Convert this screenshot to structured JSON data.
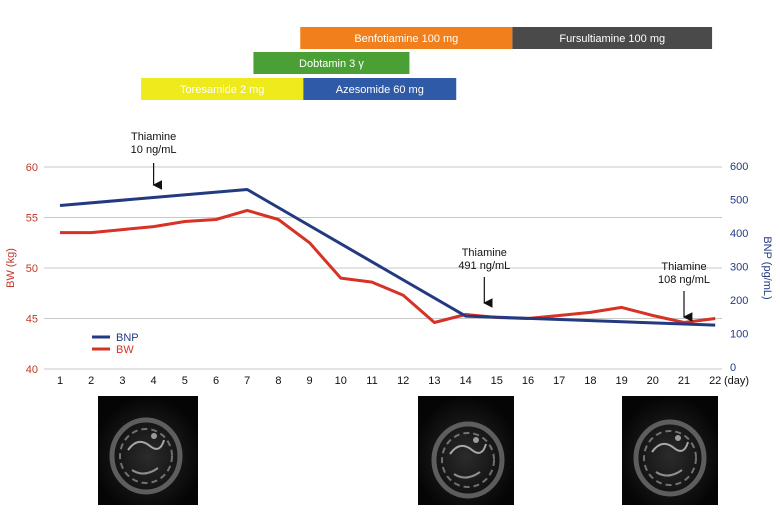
{
  "chart_data": {
    "type": "line",
    "title": "",
    "xlabel": "(day)",
    "ylabel_left": "BW (kg)",
    "ylabel_right": "BNP (pg/mL)",
    "x_ticks": [
      "1",
      "2",
      "3",
      "4",
      "5",
      "6",
      "7",
      "8",
      "9",
      "10",
      "11",
      "12",
      "13",
      "14",
      "15",
      "16",
      "17",
      "18",
      "19",
      "20",
      "21",
      "22"
    ],
    "ylim_left": [
      40,
      60
    ],
    "yticks_left": [
      "40",
      "45",
      "50",
      "55",
      "60"
    ],
    "ylim_right": [
      0,
      600
    ],
    "yticks_right": [
      "0",
      "100",
      "200",
      "300",
      "400",
      "500",
      "600"
    ],
    "grid": "horizontal",
    "colors": {
      "bw": "#d63226",
      "bnp": "#243a80",
      "grid": "#c8c8c8",
      "left_axis": "#c0392b",
      "right_axis": "#243a80"
    },
    "series": [
      {
        "name": "BW",
        "axis": "left",
        "x": [
          1,
          2,
          3,
          4,
          5,
          6,
          7,
          8,
          9,
          10,
          11,
          12,
          13,
          14,
          15,
          16,
          17,
          18,
          19,
          20,
          21,
          22
        ],
        "values": [
          53.5,
          53.5,
          53.8,
          54.1,
          54.6,
          54.8,
          55.7,
          54.8,
          52.5,
          49.0,
          48.6,
          47.3,
          44.6,
          45.4,
          45.1,
          45.0,
          45.3,
          45.6,
          46.1,
          45.3,
          44.6,
          45.0
        ]
      },
      {
        "name": "BNP",
        "axis": "right",
        "x": [
          1,
          7,
          14,
          22
        ],
        "values": [
          482,
          530,
          152,
          125
        ]
      }
    ],
    "legend": {
      "items": [
        "BNP",
        "BW"
      ],
      "placement": "bottom-left"
    },
    "annotations": [
      {
        "lines": [
          "Thiamine",
          "10 ng/mL"
        ],
        "day": 4,
        "arrow": "down"
      },
      {
        "lines": [
          "Thiamine",
          "491 ng/mL"
        ],
        "day": 14.6,
        "arrow": "down"
      },
      {
        "lines": [
          "Thiamine",
          "108 ng/mL"
        ],
        "day": 21,
        "arrow": "down"
      }
    ],
    "treatments": [
      {
        "label": "Benfotiamine 100 mg",
        "start_day": 8.7,
        "end_day": 15.5,
        "row": 1,
        "color": "#f07f1c"
      },
      {
        "label": "Fursultiamine 100 mg",
        "start_day": 15.5,
        "end_day": 21.9,
        "row": 1,
        "color": "#4a4a4a"
      },
      {
        "label": "Dobtamin 3 γ",
        "start_day": 7.2,
        "end_day": 12.2,
        "row": 2,
        "color": "#4a9f35"
      },
      {
        "label": "Toresamide 2 mg",
        "start_day": 3.6,
        "end_day": 8.8,
        "row": 3,
        "color": "#eeea1b"
      },
      {
        "label": "Azesomide 60 mg",
        "start_day": 8.8,
        "end_day": 13.7,
        "row": 3,
        "color": "#2f5aa8"
      }
    ]
  },
  "echo_images": [
    {
      "name": "echo-image-day-4",
      "day": 4,
      "description": "echocardiogram"
    },
    {
      "name": "echo-image-day-14",
      "day": 14,
      "description": "echocardiogram"
    },
    {
      "name": "echo-image-day-21",
      "day": 21,
      "description": "echocardiogram"
    }
  ]
}
